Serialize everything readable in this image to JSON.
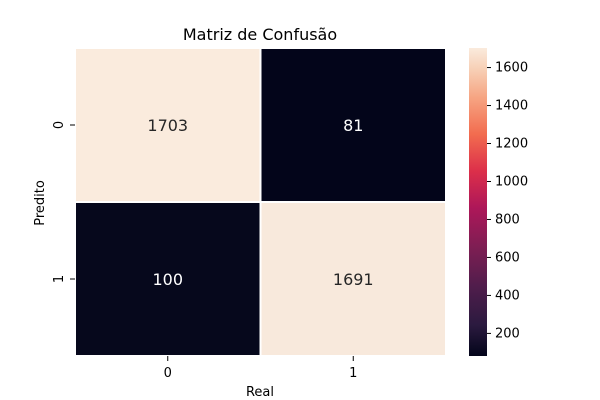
{
  "chart_data": {
    "type": "heatmap",
    "title": "Matriz de Confusão",
    "xlabel": "Real",
    "ylabel": "Predito",
    "x_categories": [
      "0",
      "1"
    ],
    "y_categories": [
      "0",
      "1"
    ],
    "values": [
      [
        1703,
        81
      ],
      [
        100,
        1691
      ]
    ],
    "color_range": [
      81,
      1703
    ],
    "colorbar_ticks": [
      200,
      400,
      600,
      800,
      1000,
      1200,
      1400,
      1600
    ],
    "colormap": "rocket",
    "colors": {
      "low": "#03051a",
      "high": "#faebdd",
      "grid_line": "#ffffff"
    }
  }
}
